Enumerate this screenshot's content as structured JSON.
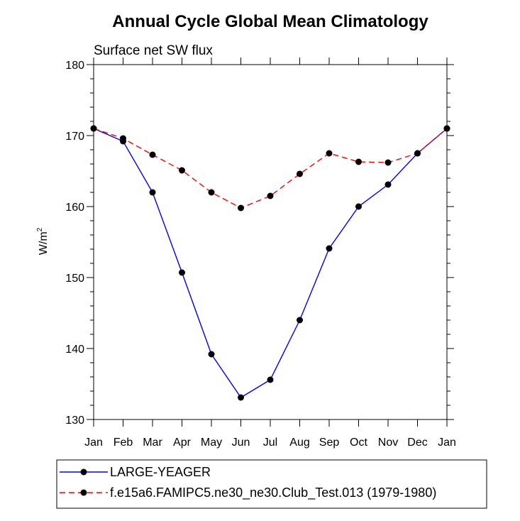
{
  "chart_data": {
    "type": "line",
    "title": "Annual Cycle Global Mean Climatology",
    "subtitle": "Surface net SW flux",
    "ylabel": "W/m",
    "ylabel_superscript": "2",
    "xlabel": "",
    "ylim": [
      130,
      180
    ],
    "yticks": [
      130,
      140,
      150,
      160,
      170,
      180
    ],
    "categories": [
      "Jan",
      "Feb",
      "Mar",
      "Apr",
      "May",
      "Jun",
      "Jul",
      "Aug",
      "Sep",
      "Oct",
      "Nov",
      "Dec",
      "Jan"
    ],
    "grid": false,
    "legend_position": "bottom",
    "series": [
      {
        "name": "LARGE-YEAGER",
        "color": "#0000ff",
        "line_style": "solid",
        "marker": "filled-circle",
        "values": [
          171.0,
          169.2,
          162.0,
          150.7,
          139.2,
          133.1,
          135.6,
          144.0,
          154.1,
          160.0,
          163.1,
          167.5,
          171.0
        ]
      },
      {
        "name": "f.e15a6.FAMIPC5.ne30_ne30.Club_Test.013 (1979-1980)",
        "color": "#ff0000",
        "line_style": "dashed",
        "marker": "filled-circle",
        "values": [
          171.0,
          169.6,
          167.3,
          165.1,
          162.0,
          159.8,
          161.5,
          164.6,
          167.5,
          166.3,
          166.2,
          167.5,
          171.0
        ]
      }
    ]
  }
}
